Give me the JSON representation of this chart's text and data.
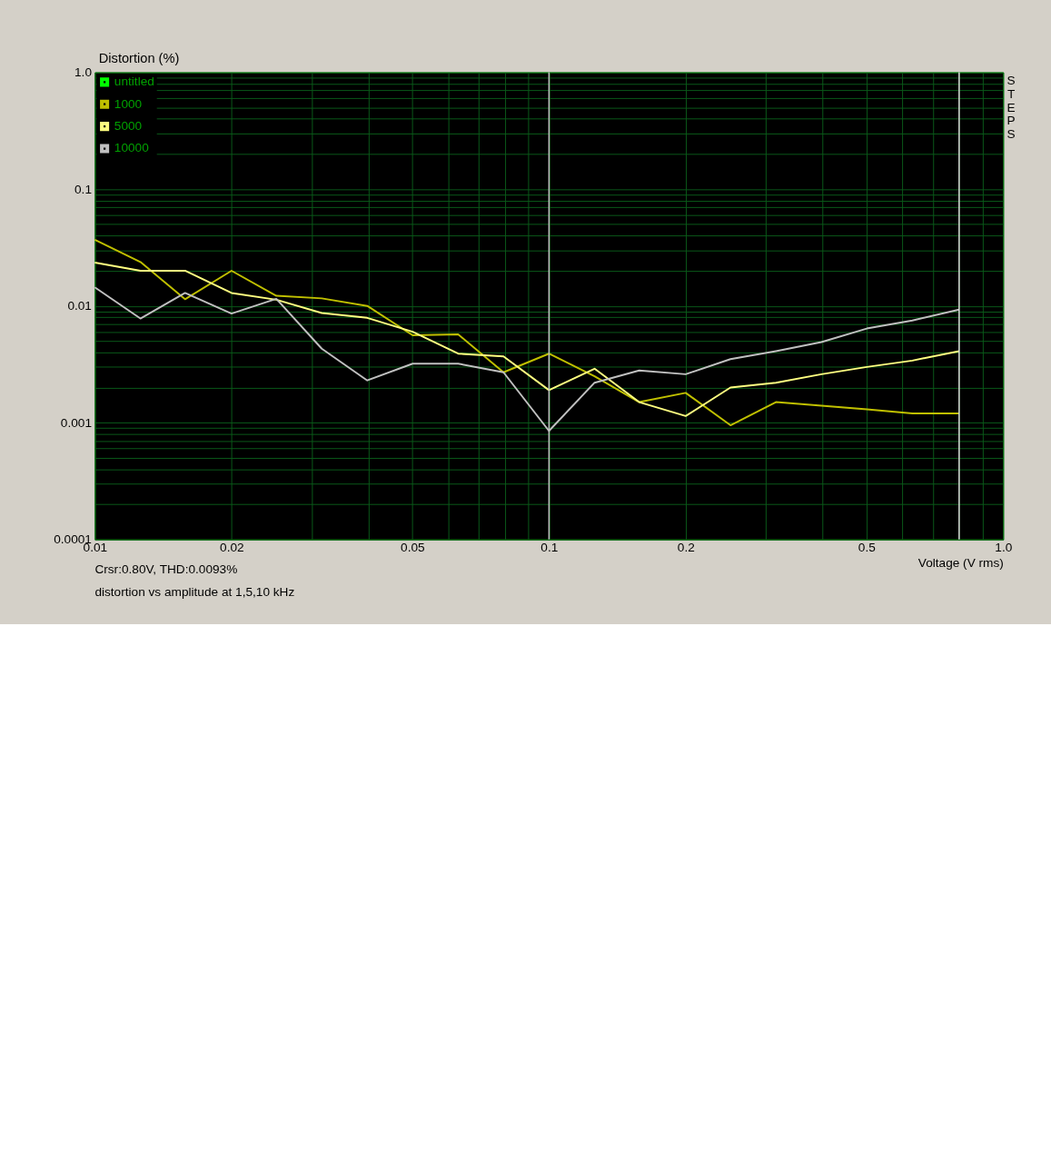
{
  "chart_data": {
    "type": "line",
    "ylabel": "Distortion (%)",
    "xlabel": "Voltage (V rms)",
    "annotations": [
      "Crsr:0.80V, THD:0.0093%",
      "distortion vs amplitude at 1,5,10 kHz",
      "STEPS"
    ],
    "x": [
      0.01,
      0.0126,
      0.0158,
      0.02,
      0.0251,
      0.0316,
      0.0398,
      0.0501,
      0.0631,
      0.0794,
      0.1,
      0.126,
      0.158,
      0.2,
      0.251,
      0.316,
      0.398,
      0.501,
      0.631,
      0.8
    ],
    "series": [
      {
        "name": "untitled",
        "color": "#00ff00",
        "values": [
          null,
          null,
          null,
          null,
          null,
          null,
          null,
          null,
          null,
          null,
          null,
          null,
          null,
          null,
          null,
          null,
          null,
          null,
          null,
          null
        ]
      },
      {
        "name": "1000",
        "color": "#c0c000",
        "values": [
          0.0368,
          0.0238,
          0.0114,
          0.02,
          0.0122,
          0.0116,
          0.01,
          0.0056,
          0.0057,
          0.0027,
          0.0039,
          0.0025,
          0.0015,
          0.0018,
          0.00095,
          0.0015,
          0.0014,
          0.0013,
          0.0012,
          0.0012
        ]
      },
      {
        "name": "5000",
        "color": "#ffff80",
        "values": [
          0.0235,
          0.02,
          0.02,
          0.0129,
          0.0113,
          0.0087,
          0.0079,
          0.006,
          0.0039,
          0.0037,
          0.0019,
          0.0029,
          0.0015,
          0.00114,
          0.002,
          0.0022,
          0.0026,
          0.003,
          0.0034,
          0.0041
        ]
      },
      {
        "name": "10000",
        "color": "#c0c0c0",
        "values": [
          0.0144,
          0.0078,
          0.0129,
          0.0086,
          0.0115,
          0.0043,
          0.0023,
          0.0032,
          0.0032,
          0.0027,
          0.00085,
          0.0022,
          0.0028,
          0.0026,
          0.0035,
          0.0041,
          0.0049,
          0.0064,
          0.0075,
          0.0093
        ]
      }
    ],
    "xlim": [
      0.01,
      1.0
    ],
    "ylim": [
      0.0001,
      1.0
    ],
    "xticks": [
      0.01,
      {
        "value": 0.02,
        "label": "0.02"
      },
      {
        "value": 0.03,
        "label": null
      },
      {
        "value": 0.04,
        "label": null
      },
      0.05,
      {
        "value": 0.06,
        "label": null
      },
      {
        "value": 0.07,
        "label": null
      },
      {
        "value": 0.08,
        "label": null
      },
      {
        "value": 0.09,
        "label": null
      },
      0.1,
      0.2,
      {
        "value": 0.3,
        "label": null
      },
      {
        "value": 0.4,
        "label": null
      },
      0.5,
      {
        "value": 0.6,
        "label": null
      },
      {
        "value": 0.7,
        "label": null
      },
      {
        "value": 0.8,
        "label": null
      },
      {
        "value": 0.9,
        "label": null
      },
      {
        "value": 1,
        "label": "1.0"
      }
    ],
    "yticks": [
      0.0001,
      {
        "value": 0.0002,
        "label": null
      },
      {
        "value": 0.0003,
        "label": null
      },
      {
        "value": 0.0004,
        "label": null
      },
      {
        "value": 0.0005,
        "label": null
      },
      {
        "value": 0.0006,
        "label": null
      },
      {
        "value": 0.0007,
        "label": null
      },
      {
        "value": 0.0008,
        "label": null
      },
      {
        "value": 0.0009,
        "label": null
      },
      0.001,
      {
        "value": 0.002,
        "label": null
      },
      {
        "value": 0.003,
        "label": null
      },
      {
        "value": 0.004,
        "label": null
      },
      {
        "value": 0.005,
        "label": null
      },
      {
        "value": 0.006,
        "label": null
      },
      {
        "value": 0.007,
        "label": null
      },
      {
        "value": 0.008,
        "label": null
      },
      {
        "value": 0.009,
        "label": null
      },
      0.01,
      {
        "value": 0.02,
        "label": null
      },
      {
        "value": 0.03,
        "label": null
      },
      {
        "value": 0.04,
        "label": null
      },
      {
        "value": 0.05,
        "label": null
      },
      {
        "value": 0.06,
        "label": null
      },
      {
        "value": 0.07,
        "label": null
      },
      {
        "value": 0.08,
        "label": null
      },
      {
        "value": 0.09,
        "label": null
      },
      0.1,
      {
        "value": 0.2,
        "label": null
      },
      {
        "value": 0.3,
        "label": null
      },
      {
        "value": 0.4,
        "label": null
      },
      {
        "value": 0.5,
        "label": null
      },
      {
        "value": 0.6,
        "label": null
      },
      {
        "value": 0.7,
        "label": null
      },
      {
        "value": 0.8,
        "label": null
      },
      {
        "value": 0.9,
        "label": null
      },
      {
        "value": 1,
        "label": "1.0"
      }
    ],
    "ref_lines": [
      {
        "axis": "x",
        "value": 0.1,
        "color": "#c0c0c0"
      },
      {
        "axis": "x",
        "value": 0.8,
        "color": "#e0e0e0"
      }
    ],
    "log": "xy",
    "grid": true,
    "legend": "top left",
    "marker": "none",
    "line_style": "solid"
  }
}
